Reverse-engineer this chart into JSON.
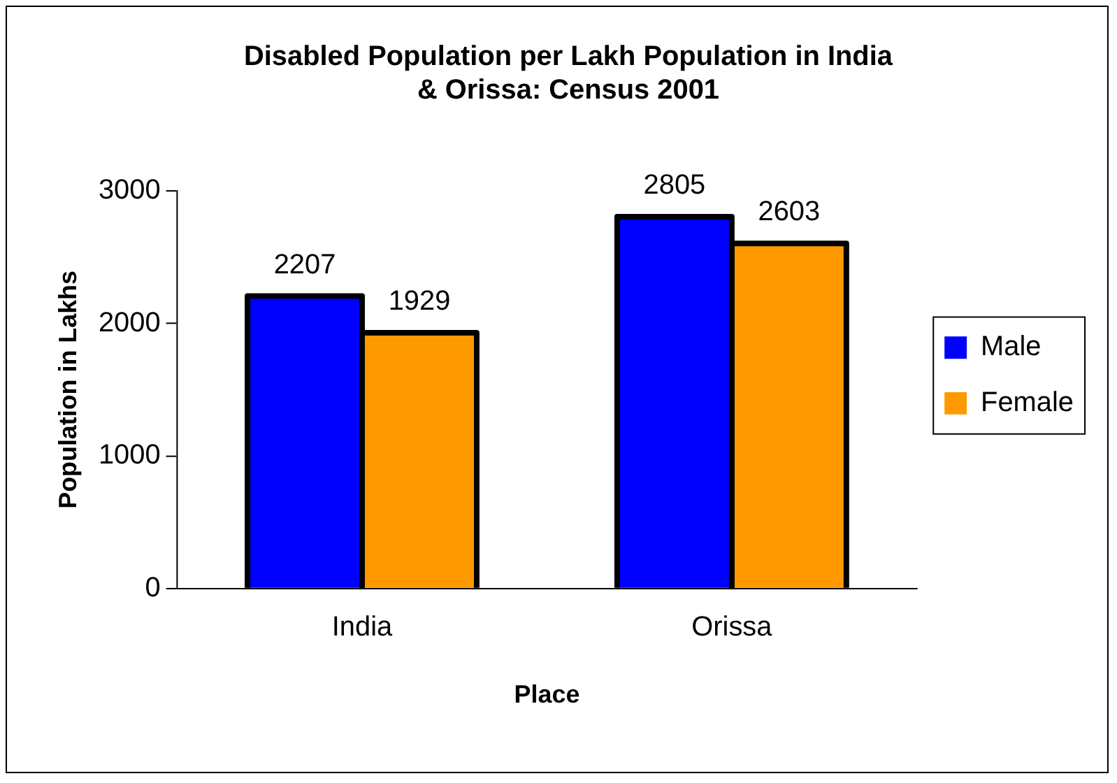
{
  "chart_data": {
    "type": "bar",
    "title": "Disabled Population per Lakh Population in India & Orissa: Census 2001",
    "xlabel": "Place",
    "ylabel": "Population in Lakhs",
    "categories": [
      "India",
      "Orissa"
    ],
    "series": [
      {
        "name": "Male",
        "color": "#0000ff",
        "values": [
          2207,
          2805
        ]
      },
      {
        "name": "Female",
        "color": "#ff9900",
        "values": [
          1929,
          2603
        ]
      }
    ],
    "ylim": [
      0,
      3000
    ],
    "yticks": [
      0,
      1000,
      2000,
      3000
    ],
    "grid": false,
    "legend": "right",
    "data_labels": true
  }
}
